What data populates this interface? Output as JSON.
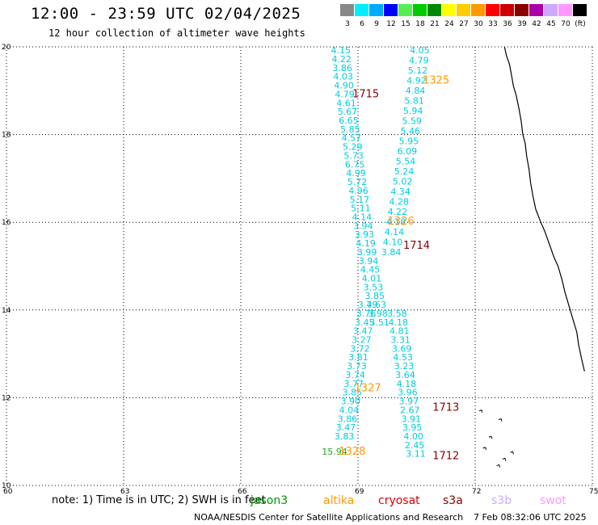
{
  "title": "12:00 - 23:59 UTC 02/04/2025",
  "subtitle": "12 hour collection of altimeter wave heights",
  "legend": {
    "labels": [
      "3",
      "6",
      "9",
      "12",
      "15",
      "18",
      "21",
      "24",
      "27",
      "30",
      "33",
      "36",
      "39",
      "42",
      "45",
      "70",
      "(ft)"
    ],
    "colors": [
      "#888888",
      "#00eeff",
      "#00aaff",
      "#0000ff",
      "#55ee55",
      "#00cc00",
      "#008800",
      "#ffff00",
      "#ffcc00",
      "#ff9900",
      "#ff0000",
      "#cc0000",
      "#880000",
      "#aa00aa",
      "#ccaaff",
      "#ff99ff",
      "#000000"
    ]
  },
  "axes": {
    "lon_ticks": [
      "60",
      "63",
      "66",
      "69",
      "72",
      "75"
    ],
    "lat_ticks": [
      "20",
      "18",
      "16",
      "14",
      "12",
      "10"
    ]
  },
  "chart_data": {
    "type": "scatter",
    "xlim": [
      60,
      75
    ],
    "ylim": [
      10,
      20
    ],
    "grid": true,
    "series": [
      {
        "name": "1715",
        "color": "#00ccdd",
        "points": [
          {
            "x": 68.56,
            "y": 19.85,
            "v": "4.15"
          },
          {
            "x": 68.58,
            "y": 19.65,
            "v": "4.22"
          },
          {
            "x": 68.6,
            "y": 19.45,
            "v": "3.86"
          },
          {
            "x": 68.62,
            "y": 19.25,
            "v": "4.03"
          },
          {
            "x": 68.64,
            "y": 19.05,
            "v": "4.90"
          },
          {
            "x": 68.66,
            "y": 18.85,
            "v": "4.79"
          },
          {
            "x": 68.7,
            "y": 18.65,
            "v": "4.61"
          },
          {
            "x": 68.73,
            "y": 18.45,
            "v": "5.67"
          },
          {
            "x": 68.76,
            "y": 18.25,
            "v": "6.65"
          },
          {
            "x": 68.8,
            "y": 18.05,
            "v": "5.85"
          },
          {
            "x": 68.83,
            "y": 17.85,
            "v": "4.57"
          },
          {
            "x": 68.86,
            "y": 17.65,
            "v": "5.29"
          },
          {
            "x": 68.89,
            "y": 17.45,
            "v": "5.73"
          },
          {
            "x": 68.92,
            "y": 17.25,
            "v": "6.75"
          },
          {
            "x": 68.95,
            "y": 17.05,
            "v": "4.99"
          },
          {
            "x": 68.98,
            "y": 16.85,
            "v": "5.72"
          },
          {
            "x": 69.01,
            "y": 16.65,
            "v": "4.96"
          },
          {
            "x": 69.04,
            "y": 16.45,
            "v": "5.17"
          },
          {
            "x": 69.07,
            "y": 16.25,
            "v": "5.11"
          },
          {
            "x": 69.1,
            "y": 16.05,
            "v": "4.14"
          },
          {
            "x": 69.13,
            "y": 15.85,
            "v": "3.94"
          },
          {
            "x": 69.16,
            "y": 15.65,
            "v": "3.93"
          }
        ]
      },
      {
        "name": "1325",
        "color": "#00ccdd",
        "points": [
          {
            "x": 70.58,
            "y": 19.85,
            "v": "4.05"
          },
          {
            "x": 70.56,
            "y": 19.62,
            "v": "4.79"
          },
          {
            "x": 70.53,
            "y": 19.39,
            "v": "5.12"
          },
          {
            "x": 70.5,
            "y": 19.16,
            "v": "4.92"
          },
          {
            "x": 70.47,
            "y": 18.93,
            "v": "4.84"
          },
          {
            "x": 70.44,
            "y": 18.7,
            "v": "5.81"
          },
          {
            "x": 70.41,
            "y": 18.47,
            "v": "5.94"
          },
          {
            "x": 70.38,
            "y": 18.24,
            "v": "5.59"
          },
          {
            "x": 70.34,
            "y": 18.01,
            "v": "5.46"
          },
          {
            "x": 70.3,
            "y": 17.78,
            "v": "5.95"
          },
          {
            "x": 70.26,
            "y": 17.55,
            "v": "6.09"
          },
          {
            "x": 70.22,
            "y": 17.32,
            "v": "5.54"
          },
          {
            "x": 70.18,
            "y": 17.09,
            "v": "5.24"
          },
          {
            "x": 70.14,
            "y": 16.86,
            "v": "5.02"
          },
          {
            "x": 70.09,
            "y": 16.63,
            "v": "4.34"
          },
          {
            "x": 70.05,
            "y": 16.4,
            "v": "4.28"
          },
          {
            "x": 70.01,
            "y": 16.17,
            "v": "4.22"
          },
          {
            "x": 69.97,
            "y": 15.94,
            "v": "4.18"
          },
          {
            "x": 69.93,
            "y": 15.71,
            "v": "4.14"
          },
          {
            "x": 69.89,
            "y": 15.48,
            "v": "4.10"
          },
          {
            "x": 69.85,
            "y": 15.25,
            "v": "3.84"
          }
        ]
      },
      {
        "name": "1714",
        "color": "#00ccdd",
        "points": [
          {
            "x": 69.2,
            "y": 15.45,
            "v": "4.19"
          },
          {
            "x": 69.23,
            "y": 15.25,
            "v": "3.99"
          },
          {
            "x": 69.27,
            "y": 15.05,
            "v": "3.94"
          },
          {
            "x": 69.31,
            "y": 14.85,
            "v": "4.45"
          },
          {
            "x": 69.35,
            "y": 14.65,
            "v": "4.01"
          },
          {
            "x": 69.39,
            "y": 14.45,
            "v": "3.53"
          },
          {
            "x": 69.43,
            "y": 14.25,
            "v": "3.85"
          },
          {
            "x": 69.47,
            "y": 14.05,
            "v": "4.63"
          },
          {
            "x": 69.51,
            "y": 13.85,
            "v": "3.98"
          },
          {
            "x": 69.55,
            "y": 13.65,
            "v": "3.51"
          }
        ]
      },
      {
        "name": "1327",
        "color": "#00ccdd",
        "points": [
          {
            "x": 69.25,
            "y": 14.05,
            "v": "3.79"
          },
          {
            "x": 69.21,
            "y": 13.85,
            "v": "3.76"
          },
          {
            "x": 69.17,
            "y": 13.65,
            "v": "3.45"
          },
          {
            "x": 69.13,
            "y": 13.45,
            "v": "3.47"
          },
          {
            "x": 69.09,
            "y": 13.25,
            "v": "3.27"
          },
          {
            "x": 69.05,
            "y": 13.05,
            "v": "3.72"
          },
          {
            "x": 69.01,
            "y": 12.85,
            "v": "3.81"
          },
          {
            "x": 68.97,
            "y": 12.65,
            "v": "3.73"
          },
          {
            "x": 68.93,
            "y": 12.45,
            "v": "3.74"
          },
          {
            "x": 68.89,
            "y": 12.25,
            "v": "3.77"
          },
          {
            "x": 68.85,
            "y": 12.05,
            "v": "3.85"
          },
          {
            "x": 68.81,
            "y": 11.85,
            "v": "3.90"
          },
          {
            "x": 68.77,
            "y": 11.65,
            "v": "4.04"
          },
          {
            "x": 68.73,
            "y": 11.45,
            "v": "3.86"
          },
          {
            "x": 68.69,
            "y": 11.25,
            "v": "3.47"
          },
          {
            "x": 68.65,
            "y": 11.05,
            "v": "3.83"
          }
        ]
      },
      {
        "name": "1713",
        "color": "#00ccdd",
        "points": [
          {
            "x": 70.0,
            "y": 13.85,
            "v": "3.58"
          },
          {
            "x": 70.03,
            "y": 13.65,
            "v": "4.18"
          },
          {
            "x": 70.06,
            "y": 13.45,
            "v": "4.81"
          },
          {
            "x": 70.09,
            "y": 13.25,
            "v": "3.31"
          },
          {
            "x": 70.12,
            "y": 13.05,
            "v": "3.69"
          },
          {
            "x": 70.15,
            "y": 12.85,
            "v": "4.53"
          },
          {
            "x": 70.18,
            "y": 12.65,
            "v": "3.23"
          },
          {
            "x": 70.21,
            "y": 12.45,
            "v": "3.64"
          },
          {
            "x": 70.24,
            "y": 12.25,
            "v": "4.18"
          },
          {
            "x": 70.27,
            "y": 12.05,
            "v": "3.96"
          },
          {
            "x": 70.3,
            "y": 11.85,
            "v": "3.97"
          },
          {
            "x": 70.33,
            "y": 11.65,
            "v": "2.67"
          },
          {
            "x": 70.36,
            "y": 11.45,
            "v": "3.91"
          },
          {
            "x": 70.39,
            "y": 11.25,
            "v": "3.95"
          },
          {
            "x": 70.42,
            "y": 11.05,
            "v": "4.00"
          },
          {
            "x": 70.45,
            "y": 10.85,
            "v": "2.45"
          },
          {
            "x": 70.48,
            "y": 10.65,
            "v": "3.11"
          }
        ]
      },
      {
        "name": "1328",
        "color": "#22aa22",
        "points": [
          {
            "x": 68.4,
            "y": 10.7,
            "v": "15.94"
          }
        ]
      }
    ],
    "pass_labels": [
      {
        "text": "1715",
        "lon": 69.2,
        "lat": 18.85,
        "color": "#880000"
      },
      {
        "text": "1325",
        "lon": 71.0,
        "lat": 19.16,
        "color": "#ff9900"
      },
      {
        "text": "1326",
        "lon": 70.1,
        "lat": 15.95,
        "color": "#ff9900"
      },
      {
        "text": "1714",
        "lon": 70.5,
        "lat": 15.4,
        "color": "#880000"
      },
      {
        "text": "1327",
        "lon": 69.25,
        "lat": 12.15,
        "color": "#ff9900"
      },
      {
        "text": "1713",
        "lon": 71.25,
        "lat": 11.7,
        "color": "#880000"
      },
      {
        "text": "1328",
        "lon": 68.85,
        "lat": 10.7,
        "color": "#ff9900"
      },
      {
        "text": "1712",
        "lon": 71.25,
        "lat": 10.6,
        "color": "#880000"
      }
    ]
  },
  "note": "note: 1) Time is in UTC; 2) SWH is in feet",
  "satellites": [
    {
      "name": "jason3",
      "color": "#009900"
    },
    {
      "name": "altika",
      "color": "#ff9900"
    },
    {
      "name": "cryosat",
      "color": "#dd0000"
    },
    {
      "name": "s3a",
      "color": "#880000"
    },
    {
      "name": "s3b",
      "color": "#ccaaff"
    },
    {
      "name": "swot",
      "color": "#ff99ff"
    }
  ],
  "footer": {
    "agency": "NOAA/NESDIS Center for Satellite Applications and Research",
    "timestamp": "7 Feb 08:32:06 UTC 2025"
  }
}
